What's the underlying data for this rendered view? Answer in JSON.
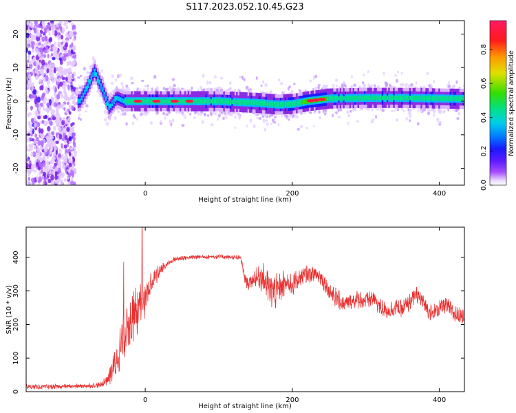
{
  "figure": {
    "title": "S117.2023.052.10.45.G23"
  },
  "chart_data": [
    {
      "type": "heatmap",
      "xlabel": "Height of straight line (km)",
      "ylabel": "Frequency (Hz)",
      "xlim": [
        -162,
        434
      ],
      "ylim": [
        -25,
        24
      ],
      "xticks": [
        0,
        200,
        400
      ],
      "yticks": [
        -20,
        -10,
        0,
        10,
        20
      ],
      "grid": false,
      "colorbar": {
        "label": "Normalized spectral amplitude",
        "range": [
          0.0,
          0.97
        ],
        "ticks": [
          0.0,
          0.2,
          0.4,
          0.6,
          0.8
        ],
        "colors": [
          "#ffffff",
          "#d9b3ff",
          "#8a2be2",
          "#1a1aff",
          "#00bfff",
          "#00e08a",
          "#33dd00",
          "#e0e000",
          "#ff9900",
          "#ff1a1a",
          "#ff1a66"
        ]
      },
      "band_center_profile": {
        "x": [
          -90,
          -80,
          -70,
          -60,
          -50,
          -40,
          -30,
          -20,
          0,
          50,
          100,
          150,
          180,
          200,
          220,
          250,
          300,
          350,
          400,
          434
        ],
        "frequency_hz": [
          0,
          4,
          9,
          4,
          -2,
          1,
          0,
          0,
          0,
          0,
          0,
          -0.5,
          -1,
          -0.8,
          0,
          0.8,
          1.0,
          1.0,
          0.8,
          0.7
        ]
      },
      "noise_region": {
        "x": [
          -162,
          -95
        ],
        "frequency_range": [
          -25,
          24
        ]
      }
    },
    {
      "type": "line",
      "xlabel": "Height of straight line (km)",
      "ylabel": "SNR (10 * v/v)",
      "xlim": [
        -162,
        434
      ],
      "ylim": [
        0,
        490
      ],
      "xticks": [
        0,
        200,
        400
      ],
      "yticks": [
        0,
        100,
        200,
        300,
        400
      ],
      "grid": false,
      "series": [
        {
          "color": "#e83030",
          "x": [
            -162,
            -140,
            -120,
            -100,
            -80,
            -60,
            -50,
            -40,
            -30,
            -20,
            -10,
            0,
            10,
            20,
            30,
            40,
            60,
            80,
            100,
            120,
            130,
            135,
            140,
            150,
            160,
            170,
            180,
            190,
            200,
            210,
            220,
            230,
            240,
            250,
            260,
            270,
            280,
            290,
            300,
            310,
            320,
            330,
            340,
            350,
            360,
            370,
            380,
            390,
            400,
            410,
            420,
            434
          ],
          "y": [
            15,
            14,
            15,
            16,
            17,
            20,
            40,
            90,
            160,
            220,
            240,
            280,
            330,
            360,
            380,
            395,
            400,
            402,
            402,
            400,
            398,
            340,
            320,
            340,
            340,
            300,
            300,
            320,
            320,
            340,
            350,
            350,
            340,
            300,
            280,
            260,
            270,
            275,
            270,
            280,
            250,
            240,
            250,
            245,
            270,
            290,
            260,
            230,
            250,
            260,
            230,
            225
          ],
          "spread": [
            8,
            8,
            8,
            8,
            8,
            10,
            25,
            60,
            80,
            90,
            80,
            60,
            40,
            20,
            12,
            10,
            8,
            8,
            8,
            8,
            8,
            20,
            20,
            30,
            50,
            60,
            60,
            50,
            40,
            35,
            30,
            30,
            30,
            35,
            35,
            30,
            30,
            30,
            30,
            30,
            30,
            30,
            30,
            30,
            30,
            30,
            30,
            30,
            30,
            30,
            30,
            30
          ]
        }
      ]
    }
  ]
}
